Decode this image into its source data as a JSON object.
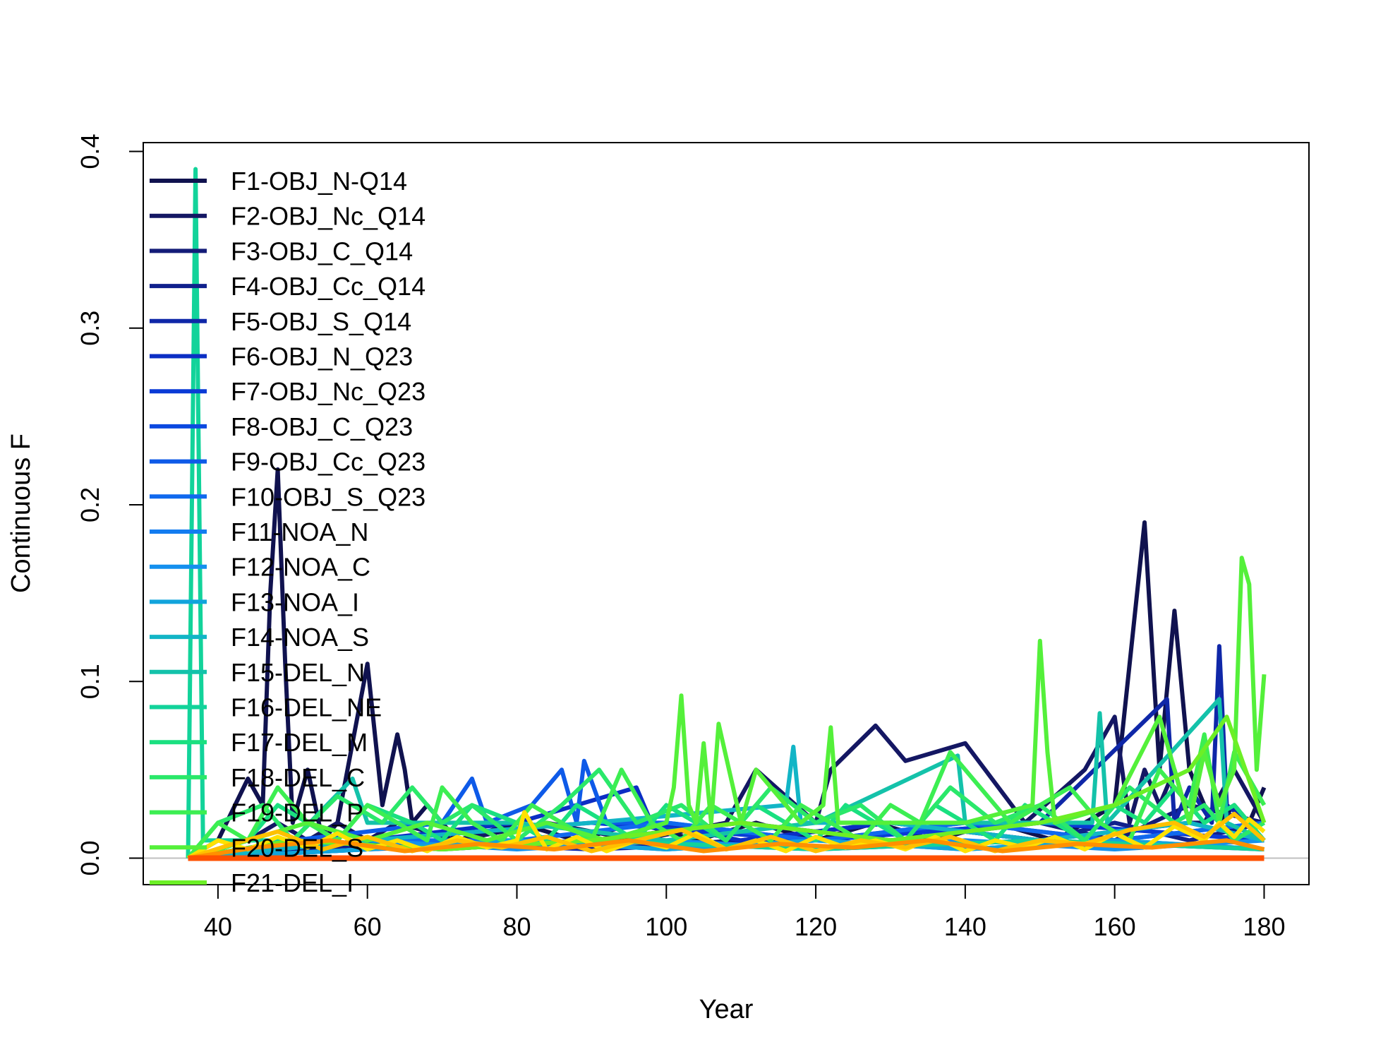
{
  "chart_data": {
    "type": "line",
    "title": "",
    "xlabel": "Year",
    "ylabel": "Continuous F",
    "xlim": [
      30,
      186
    ],
    "ylim": [
      -0.015,
      0.405
    ],
    "xticks": [
      40,
      60,
      80,
      100,
      120,
      140,
      160,
      180
    ],
    "yticks": [
      0.0,
      0.1,
      0.2,
      0.3,
      0.4
    ],
    "xtick_labels": [
      "40",
      "60",
      "80",
      "100",
      "120",
      "140",
      "160",
      "180"
    ],
    "ytick_labels": [
      "0.0",
      "0.1",
      "0.2",
      "0.3",
      "0.4"
    ],
    "grid": false,
    "legend_position": "top-left",
    "reference_line": {
      "y": 0.0,
      "color": "#bfbfbf"
    },
    "series": [
      {
        "name": "F1-OBJ_N-Q14",
        "color": "#10124f",
        "x": [
          36,
          40,
          44,
          46,
          47,
          48,
          49,
          50,
          52,
          54,
          56,
          60,
          62,
          64,
          65,
          66,
          68,
          72,
          80,
          88,
          96,
          104,
          112,
          120,
          128,
          136,
          144,
          152,
          160,
          164,
          166,
          168,
          170,
          172,
          174,
          176,
          178,
          180
        ],
        "y": [
          0,
          0.01,
          0.045,
          0.03,
          0.15,
          0.22,
          0.11,
          0.02,
          0.05,
          0.01,
          0.02,
          0.11,
          0.03,
          0.07,
          0.05,
          0.02,
          0.03,
          0.01,
          0.02,
          0.01,
          0.02,
          0.01,
          0.02,
          0.01,
          0.02,
          0.01,
          0.02,
          0.01,
          0.03,
          0.19,
          0.05,
          0.14,
          0.05,
          0.03,
          0.02,
          0.03,
          0.02,
          0.04
        ]
      },
      {
        "name": "F2-OBJ_Nc_Q14",
        "color": "#141763",
        "x": [
          36,
          44,
          48,
          52,
          56,
          60,
          64,
          72,
          84,
          96,
          108,
          112,
          120,
          122,
          128,
          132,
          140,
          148,
          156,
          160,
          162,
          164,
          166,
          168,
          170,
          172,
          176,
          180
        ],
        "y": [
          0,
          0.01,
          0.02,
          0.01,
          0.02,
          0.01,
          0.02,
          0.01,
          0.02,
          0.01,
          0.02,
          0.05,
          0.02,
          0.05,
          0.075,
          0.055,
          0.065,
          0.02,
          0.05,
          0.08,
          0.02,
          0.05,
          0.03,
          0.05,
          0.02,
          0.02,
          0.05,
          0.02
        ]
      },
      {
        "name": "F3-OBJ_C_Q14",
        "color": "#141c78",
        "x": [
          36,
          50,
          70,
          90,
          110,
          130,
          150,
          160,
          170,
          180
        ],
        "y": [
          0,
          0.01,
          0.005,
          0.01,
          0.02,
          0.01,
          0.02,
          0.01,
          0.03,
          0.02
        ]
      },
      {
        "name": "F4-OBJ_Cc_Q14",
        "color": "#10208c",
        "x": [
          36,
          50,
          70,
          90,
          110,
          130,
          150,
          160,
          170,
          180
        ],
        "y": [
          0,
          0.005,
          0.01,
          0.005,
          0.01,
          0.02,
          0.01,
          0.02,
          0.01,
          0.02
        ]
      },
      {
        "name": "F5-OBJ_S_Q14",
        "color": "#0f27a8",
        "x": [
          36,
          60,
          90,
          120,
          150,
          167,
          168,
          170,
          173,
          174,
          175,
          178,
          180
        ],
        "y": [
          0,
          0.01,
          0.005,
          0.01,
          0.02,
          0.09,
          0.02,
          0.04,
          0.02,
          0.12,
          0.03,
          0.02,
          0.01
        ]
      },
      {
        "name": "F6-OBJ_N_Q23",
        "color": "#0b2ec4",
        "x": [
          36,
          60,
          80,
          96,
          98,
          110,
          130,
          150,
          170,
          180
        ],
        "y": [
          0,
          0.01,
          0.02,
          0.04,
          0.02,
          0.01,
          0.02,
          0.01,
          0.02,
          0.01
        ]
      },
      {
        "name": "F7-OBJ_Nc_Q23",
        "color": "#0a3ad6",
        "x": [
          36,
          60,
          90,
          120,
          150,
          180
        ],
        "y": [
          0,
          0.01,
          0.02,
          0.01,
          0.02,
          0.01
        ]
      },
      {
        "name": "F8-OBJ_C_Q23",
        "color": "#0c49e0",
        "x": [
          36,
          60,
          90,
          120,
          150,
          180
        ],
        "y": [
          0,
          0.005,
          0.01,
          0.005,
          0.01,
          0.005
        ]
      },
      {
        "name": "F9-OBJ_Cc_Q23",
        "color": "#0e5ae8",
        "x": [
          36,
          50,
          70,
          74,
          76,
          82,
          86,
          88,
          89,
          92,
          100,
          120,
          140,
          160,
          180
        ],
        "y": [
          0,
          0.01,
          0.02,
          0.045,
          0.02,
          0.03,
          0.05,
          0.02,
          0.055,
          0.02,
          0.02,
          0.01,
          0.02,
          0.01,
          0.02
        ]
      },
      {
        "name": "F10-OBJ_S_Q23",
        "color": "#1069ee",
        "x": [
          36,
          60,
          80,
          100,
          120,
          140,
          160,
          180
        ],
        "y": [
          0,
          0.01,
          0.01,
          0.02,
          0.01,
          0.02,
          0.01,
          0.02
        ]
      },
      {
        "name": "F11-NOA_N",
        "color": "#127cf0",
        "x": [
          36,
          60,
          80,
          100,
          120,
          140,
          160,
          180
        ],
        "y": [
          0,
          0.005,
          0.01,
          0.005,
          0.01,
          0.005,
          0.01,
          0.005
        ]
      },
      {
        "name": "F12-NOA_C",
        "color": "#1490ee",
        "x": [
          36,
          60,
          80,
          100,
          120,
          140,
          160,
          180
        ],
        "y": [
          0,
          0.01,
          0.005,
          0.01,
          0.005,
          0.01,
          0.005,
          0.01
        ]
      },
      {
        "name": "F13-NOA_I",
        "color": "#12a4dc",
        "x": [
          36,
          60,
          80,
          100,
          120,
          140,
          160,
          180
        ],
        "y": [
          0,
          0.005,
          0.01,
          0.005,
          0.01,
          0.005,
          0.01,
          0.005
        ]
      },
      {
        "name": "F14-NOA_S",
        "color": "#12b5c6",
        "x": [
          36,
          60,
          90,
          116,
          117,
          118,
          130,
          150,
          170,
          180
        ],
        "y": [
          0,
          0.01,
          0.02,
          0.03,
          0.063,
          0.02,
          0.02,
          0.01,
          0.02,
          0.01
        ]
      },
      {
        "name": "F15-DEL_N",
        "color": "#14c2aa",
        "x": [
          36,
          50,
          58,
          60,
          80,
          100,
          120,
          139,
          140,
          157,
          158,
          159,
          174,
          175,
          180
        ],
        "y": [
          0,
          0.01,
          0.045,
          0.02,
          0.02,
          0.01,
          0.02,
          0.058,
          0.02,
          0.02,
          0.082,
          0.02,
          0.09,
          0.02,
          0.01
        ]
      },
      {
        "name": "F16-DEL_NE",
        "color": "#12d39a",
        "x": [
          36,
          37,
          38,
          50,
          70,
          90,
          120,
          150,
          180
        ],
        "y": [
          0,
          0.39,
          0.01,
          0.01,
          0.005,
          0.01,
          0.005,
          0.01,
          0.005
        ]
      },
      {
        "name": "F17-DEL_M",
        "color": "#1ae080",
        "x": [
          36,
          44,
          48,
          52,
          56,
          60,
          66,
          70,
          74,
          80,
          84,
          88,
          92,
          96,
          100,
          104,
          108,
          112,
          116,
          120,
          124,
          128,
          132,
          136,
          140,
          144,
          148,
          152,
          156,
          160,
          164,
          168,
          172,
          176,
          180
        ],
        "y": [
          0,
          0.01,
          0.03,
          0.02,
          0.01,
          0.03,
          0.02,
          0.01,
          0.03,
          0.02,
          0.01,
          0.03,
          0.02,
          0.01,
          0.03,
          0.02,
          0.01,
          0.03,
          0.02,
          0.01,
          0.03,
          0.02,
          0.01,
          0.03,
          0.02,
          0.01,
          0.03,
          0.02,
          0.01,
          0.03,
          0.02,
          0.04,
          0.02,
          0.03,
          0.01
        ]
      },
      {
        "name": "F18-DEL_C",
        "color": "#2ae86a",
        "x": [
          36,
          40,
          46,
          50,
          56,
          62,
          66,
          70,
          74,
          80,
          86,
          91,
          96,
          102,
          108,
          114,
          120,
          126,
          132,
          138,
          144,
          150,
          156,
          162,
          168,
          172,
          176,
          180
        ],
        "y": [
          0,
          0.02,
          0.03,
          0.01,
          0.035,
          0.02,
          0.04,
          0.02,
          0.03,
          0.01,
          0.03,
          0.05,
          0.02,
          0.03,
          0.01,
          0.04,
          0.02,
          0.03,
          0.01,
          0.04,
          0.02,
          0.03,
          0.01,
          0.04,
          0.02,
          0.03,
          0.01,
          0.02
        ]
      },
      {
        "name": "F19-DEL_P",
        "color": "#3cee52",
        "x": [
          36,
          40,
          44,
          48,
          52,
          56,
          60,
          64,
          68,
          70,
          74,
          78,
          82,
          86,
          90,
          94,
          98,
          102,
          106,
          110,
          114,
          118,
          122,
          126,
          130,
          134,
          137,
          138,
          140,
          142,
          146,
          150,
          154,
          158,
          162,
          166,
          170,
          172,
          174,
          176,
          180
        ],
        "y": [
          0,
          0.02,
          0.01,
          0.04,
          0.02,
          0.01,
          0.03,
          0.02,
          0.01,
          0.04,
          0.02,
          0.01,
          0.03,
          0.02,
          0.01,
          0.05,
          0.02,
          0.01,
          0.03,
          0.02,
          0.01,
          0.03,
          0.02,
          0.01,
          0.03,
          0.02,
          0.05,
          0.06,
          0.05,
          0.04,
          0.02,
          0.03,
          0.04,
          0.02,
          0.01,
          0.05,
          0.03,
          0.07,
          0.02,
          0.06,
          0.03
        ]
      },
      {
        "name": "F20-DEL_S",
        "color": "#54f03a",
        "x": [
          36,
          44,
          52,
          60,
          68,
          76,
          84,
          92,
          100,
          101,
          102,
          103,
          104,
          105,
          106,
          107,
          110,
          112,
          118,
          121,
          122,
          123,
          130,
          140,
          149,
          150,
          151,
          152,
          160,
          166,
          170,
          172,
          174,
          176,
          177,
          178,
          179,
          180
        ],
        "y": [
          0,
          0.01,
          0.02,
          0.01,
          0.02,
          0.01,
          0.02,
          0.01,
          0.02,
          0.04,
          0.092,
          0.03,
          0.02,
          0.065,
          0.02,
          0.076,
          0.02,
          0.05,
          0.02,
          0.03,
          0.074,
          0.02,
          0.02,
          0.02,
          0.03,
          0.123,
          0.06,
          0.02,
          0.03,
          0.08,
          0.02,
          0.06,
          0.03,
          0.05,
          0.17,
          0.155,
          0.05,
          0.104
        ]
      },
      {
        "name": "F21-DEL_I",
        "color": "#6cef26",
        "x": [
          36,
          50,
          70,
          90,
          110,
          130,
          150,
          160,
          170,
          175,
          180
        ],
        "y": [
          0,
          0.01,
          0.005,
          0.01,
          0.02,
          0.01,
          0.02,
          0.03,
          0.05,
          0.08,
          0.02
        ]
      },
      {
        "name": "",
        "color": "#ffe100",
        "x": [
          36,
          40,
          44,
          48,
          52,
          56,
          60,
          64,
          68,
          72,
          76,
          80,
          81,
          84,
          88,
          92,
          96,
          100,
          104,
          108,
          112,
          116,
          120,
          124,
          128,
          132,
          136,
          140,
          144,
          148,
          152,
          156,
          160,
          164,
          168,
          172,
          174,
          176,
          178,
          180
        ],
        "y": [
          0,
          0.01,
          0.005,
          0.012,
          0.006,
          0.014,
          0.005,
          0.01,
          0.004,
          0.012,
          0.006,
          0.01,
          0.026,
          0.005,
          0.012,
          0.004,
          0.01,
          0.006,
          0.014,
          0.005,
          0.01,
          0.004,
          0.012,
          0.006,
          0.01,
          0.005,
          0.012,
          0.004,
          0.01,
          0.006,
          0.012,
          0.005,
          0.014,
          0.006,
          0.018,
          0.01,
          0.02,
          0.012,
          0.022,
          0.015
        ]
      },
      {
        "name": "",
        "color": "#ffc000",
        "x": [
          36,
          42,
          48,
          54,
          60,
          66,
          72,
          78,
          84,
          90,
          96,
          102,
          108,
          114,
          120,
          126,
          132,
          138,
          144,
          150,
          156,
          162,
          168,
          172,
          176,
          180
        ],
        "y": [
          0,
          0.008,
          0.015,
          0.005,
          0.012,
          0.004,
          0.01,
          0.006,
          0.012,
          0.004,
          0.01,
          0.016,
          0.005,
          0.012,
          0.004,
          0.01,
          0.006,
          0.012,
          0.004,
          0.01,
          0.008,
          0.016,
          0.02,
          0.012,
          0.025,
          0.01
        ]
      },
      {
        "name": "",
        "color": "#ff9000",
        "x": [
          36,
          45,
          55,
          65,
          75,
          85,
          95,
          105,
          115,
          125,
          135,
          145,
          155,
          165,
          175,
          180
        ],
        "y": [
          0,
          0.006,
          0.01,
          0.004,
          0.008,
          0.005,
          0.01,
          0.004,
          0.008,
          0.006,
          0.01,
          0.004,
          0.008,
          0.006,
          0.01,
          0.005
        ]
      },
      {
        "name": "",
        "color": "#ff5000",
        "x": [
          36,
          180
        ],
        "y": [
          0,
          0
        ]
      }
    ]
  }
}
